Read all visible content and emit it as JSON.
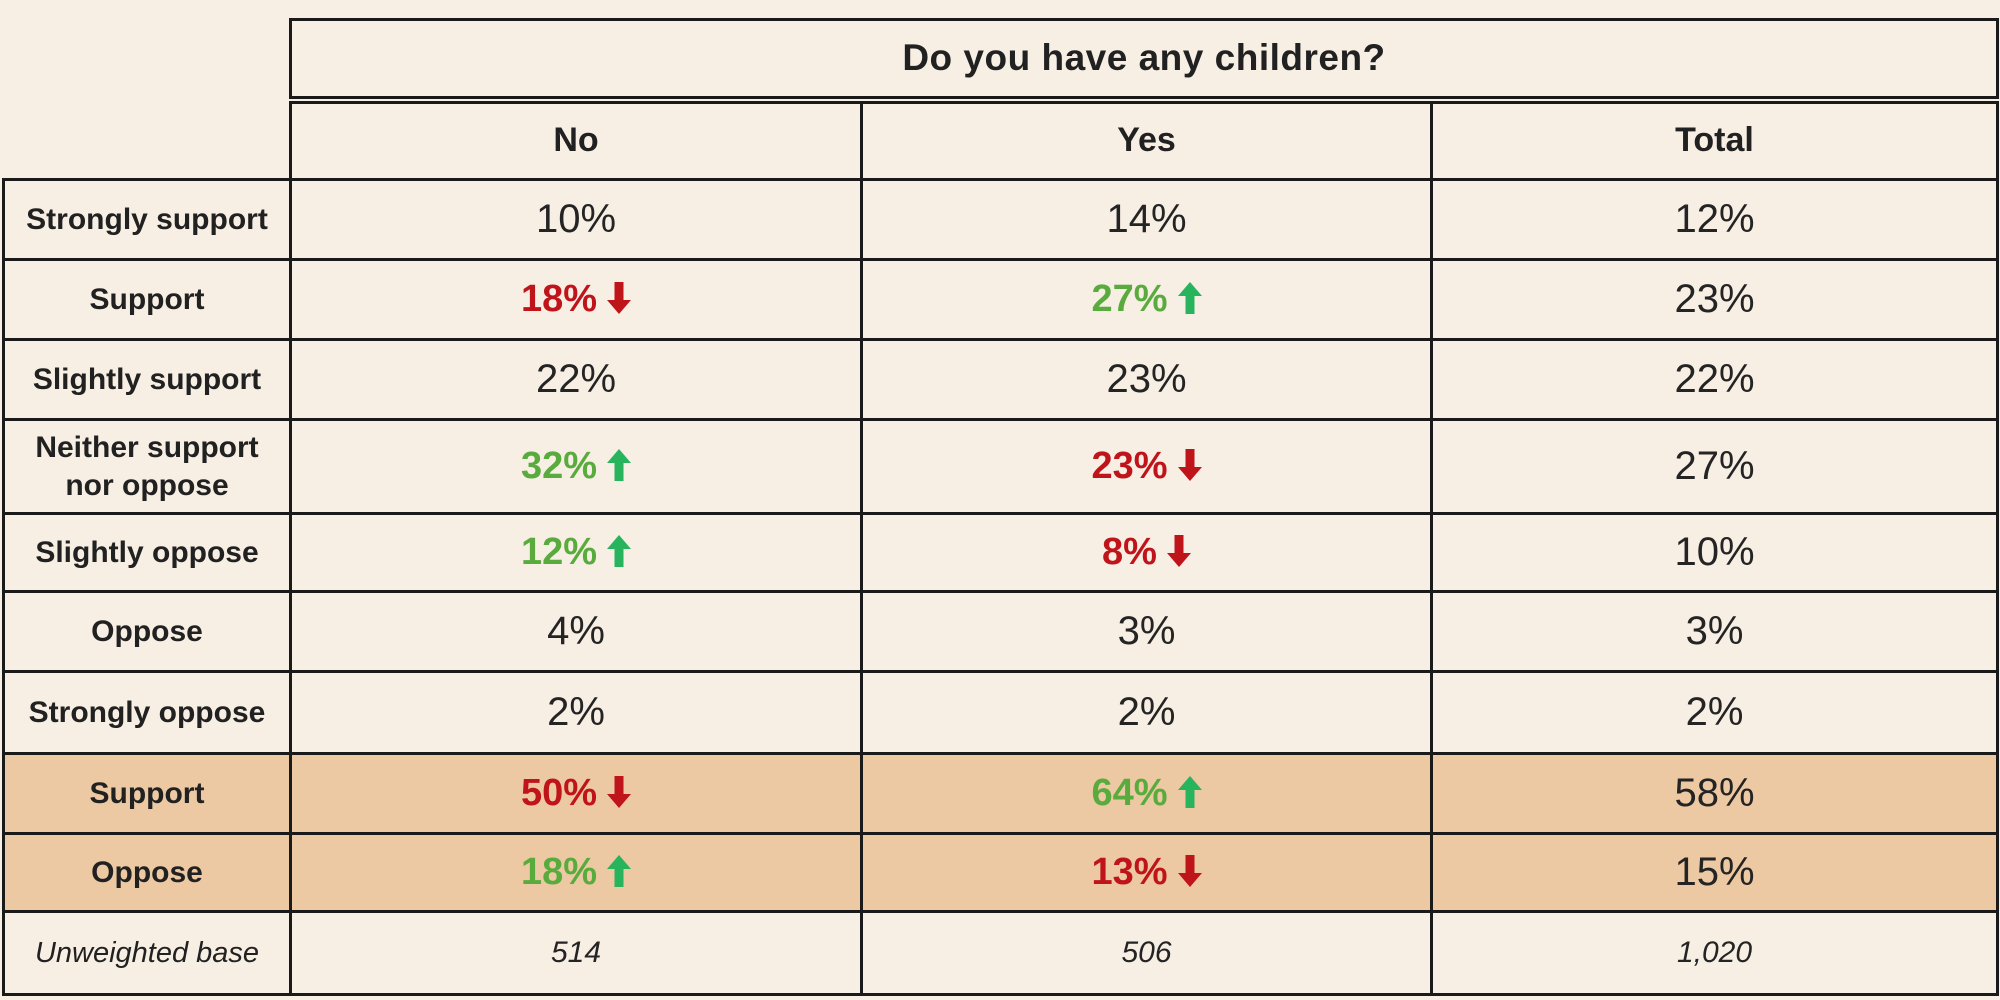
{
  "table": {
    "question": "Do you have any children?",
    "columns": [
      "No",
      "Yes",
      "Total"
    ],
    "rows": [
      {
        "label": "Strongly support",
        "cells": [
          {
            "text": "10%"
          },
          {
            "text": "14%"
          },
          {
            "text": "12%"
          }
        ]
      },
      {
        "label": "Support",
        "cells": [
          {
            "text": "18%",
            "trend": "down"
          },
          {
            "text": "27%",
            "trend": "up"
          },
          {
            "text": "23%"
          }
        ]
      },
      {
        "label": "Slightly support",
        "cells": [
          {
            "text": "22%"
          },
          {
            "text": "23%"
          },
          {
            "text": "22%"
          }
        ]
      },
      {
        "label": "Neither support nor oppose",
        "cells": [
          {
            "text": "32%",
            "trend": "up"
          },
          {
            "text": "23%",
            "trend": "down"
          },
          {
            "text": "27%"
          }
        ]
      },
      {
        "label": "Slightly oppose",
        "cells": [
          {
            "text": "12%",
            "trend": "up"
          },
          {
            "text": "8%",
            "trend": "down"
          },
          {
            "text": "10%"
          }
        ]
      },
      {
        "label": "Oppose",
        "cells": [
          {
            "text": "4%"
          },
          {
            "text": "3%"
          },
          {
            "text": "3%"
          }
        ]
      },
      {
        "label": "Strongly oppose",
        "cells": [
          {
            "text": "2%"
          },
          {
            "text": "2%"
          },
          {
            "text": "2%"
          }
        ]
      },
      {
        "label": "Support",
        "highlight": true,
        "cells": [
          {
            "text": "50%",
            "trend": "down"
          },
          {
            "text": "64%",
            "trend": "up"
          },
          {
            "text": "58%"
          }
        ]
      },
      {
        "label": "Oppose",
        "highlight": true,
        "cells": [
          {
            "text": "18%",
            "trend": "up"
          },
          {
            "text": "13%",
            "trend": "down"
          },
          {
            "text": "15%"
          }
        ]
      },
      {
        "label": "Unweighted base",
        "style": "base",
        "cells": [
          {
            "text": "514"
          },
          {
            "text": "506"
          },
          {
            "text": "1,020"
          }
        ]
      }
    ],
    "colors": {
      "background": "#f7eee4",
      "highlight": "#ecc9a2",
      "border": "#1a1a1a",
      "text": "#212121",
      "negative": "#c0141b",
      "positive_text": "#58ab3c",
      "positive_arrow": "#27b45c"
    },
    "icons": {
      "up": "trend-up-icon",
      "down": "trend-down-icon"
    }
  }
}
